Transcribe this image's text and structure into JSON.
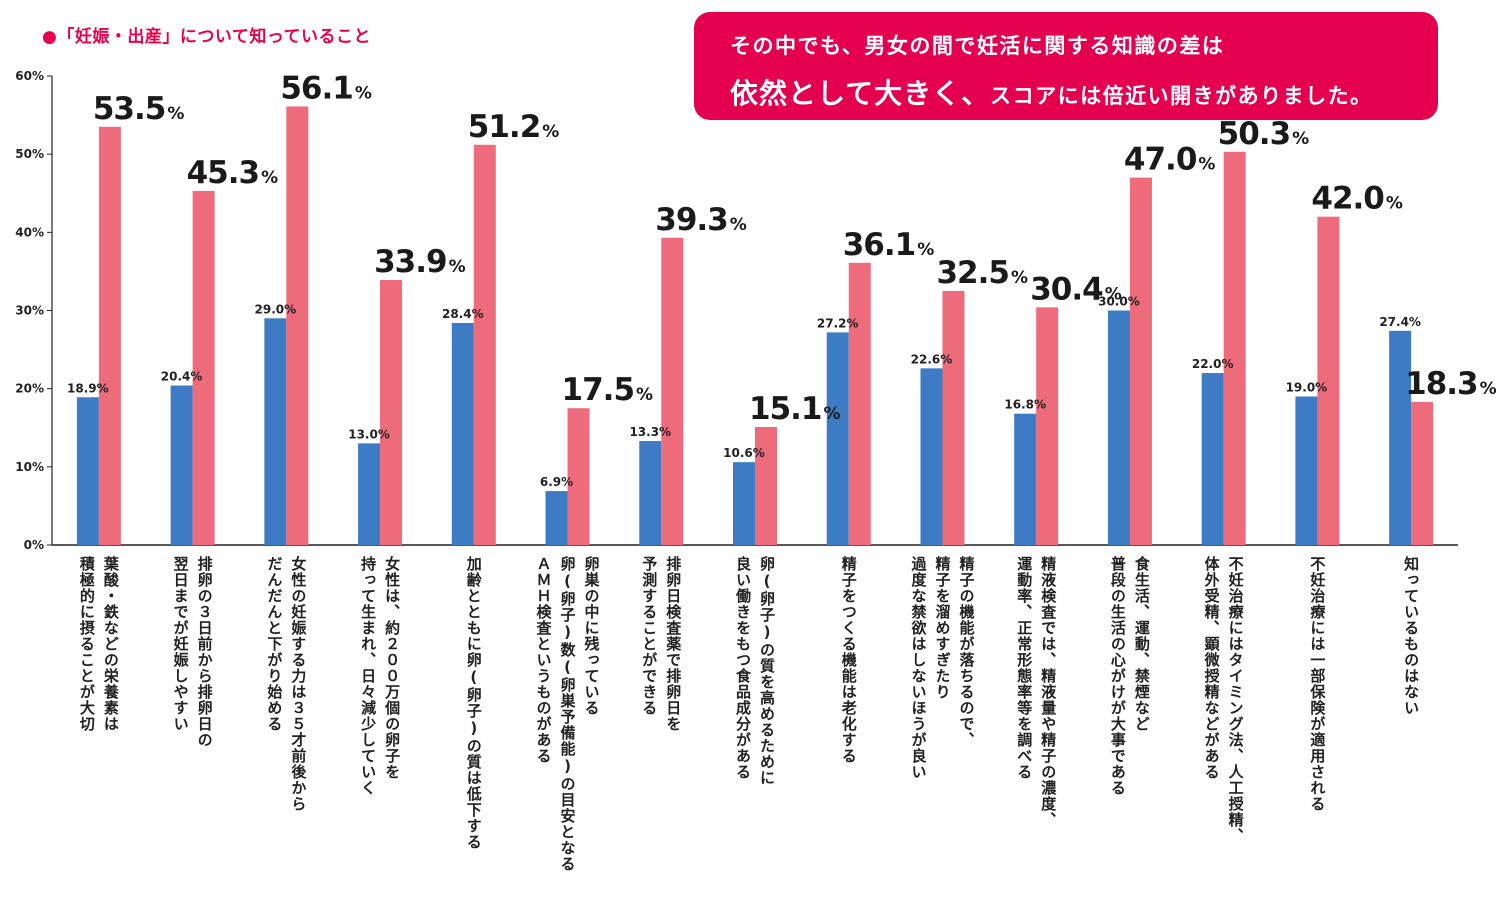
{
  "title": "●「妊娠・出産」について知っていること",
  "callout": {
    "line1": "その中でも、男女の間で妊活に関する知識の差は",
    "line2_emphasis": "依然として大きく、",
    "line2_rest": "スコアには倍近い開きがありました。"
  },
  "colors": {
    "male": "#3d7cc4",
    "female": "#ee6b7c",
    "accent": "#e4004f"
  },
  "chart_data": {
    "type": "bar",
    "title": "●「妊娠・出産」について知っていること",
    "ylim": [
      0,
      60
    ],
    "yticks": [
      "0%",
      "10%",
      "20%",
      "30%",
      "40%",
      "50%",
      "60%"
    ],
    "value_suffix": "%",
    "categories": [
      [
        "葉酸・鉄などの栄養素は",
        "積極的に摂ることが大切"
      ],
      [
        "排卵の３日前から排卵日の",
        "翌日までが妊娠しやすい"
      ],
      [
        "女性の妊娠する力は３５才前後から",
        "だんだんと下がり始める"
      ],
      [
        "女性は、約２００万個の卵子を",
        "持って生まれ、日々減少していく"
      ],
      [
        "加齢とともに卵(卵子)の質は低下する"
      ],
      [
        "卵巣の中に残っている",
        "卵(卵子)数(卵巣予備能)の目安となる",
        "ＡＭＨ検査というものがある"
      ],
      [
        "排卵日検査薬で排卵日を",
        "予測することができる"
      ],
      [
        "卵(卵子)の質を高めるために",
        "良い働きをもつ食品成分がある"
      ],
      [
        "精子をつくる機能は老化する"
      ],
      [
        "精子の機能が落ちるので、",
        "精子を溜めすぎたり",
        "過度な禁欲はしないほうが良い"
      ],
      [
        "精液検査では、精液量や精子の濃度、",
        "運動率、正常形態率等を調べる"
      ],
      [
        "食生活、運動、禁煙など",
        "普段の生活の心がけが大事である"
      ],
      [
        "不妊治療にはタイミング法、人工授精、",
        "体外受精、顕微授精などがある"
      ],
      [
        "不妊治療には一部保険が適用される"
      ],
      [
        "知っているものはない"
      ]
    ],
    "series": [
      {
        "values": [
          18.9,
          20.4,
          29.0,
          13.0,
          28.4,
          6.9,
          13.3,
          10.6,
          27.2,
          22.6,
          16.8,
          30.0,
          22.0,
          19.0,
          27.4
        ]
      },
      {
        "values": [
          53.5,
          45.3,
          56.1,
          33.9,
          51.2,
          17.5,
          39.3,
          15.1,
          36.1,
          32.5,
          30.4,
          47.0,
          50.3,
          42.0,
          18.3
        ]
      }
    ]
  }
}
